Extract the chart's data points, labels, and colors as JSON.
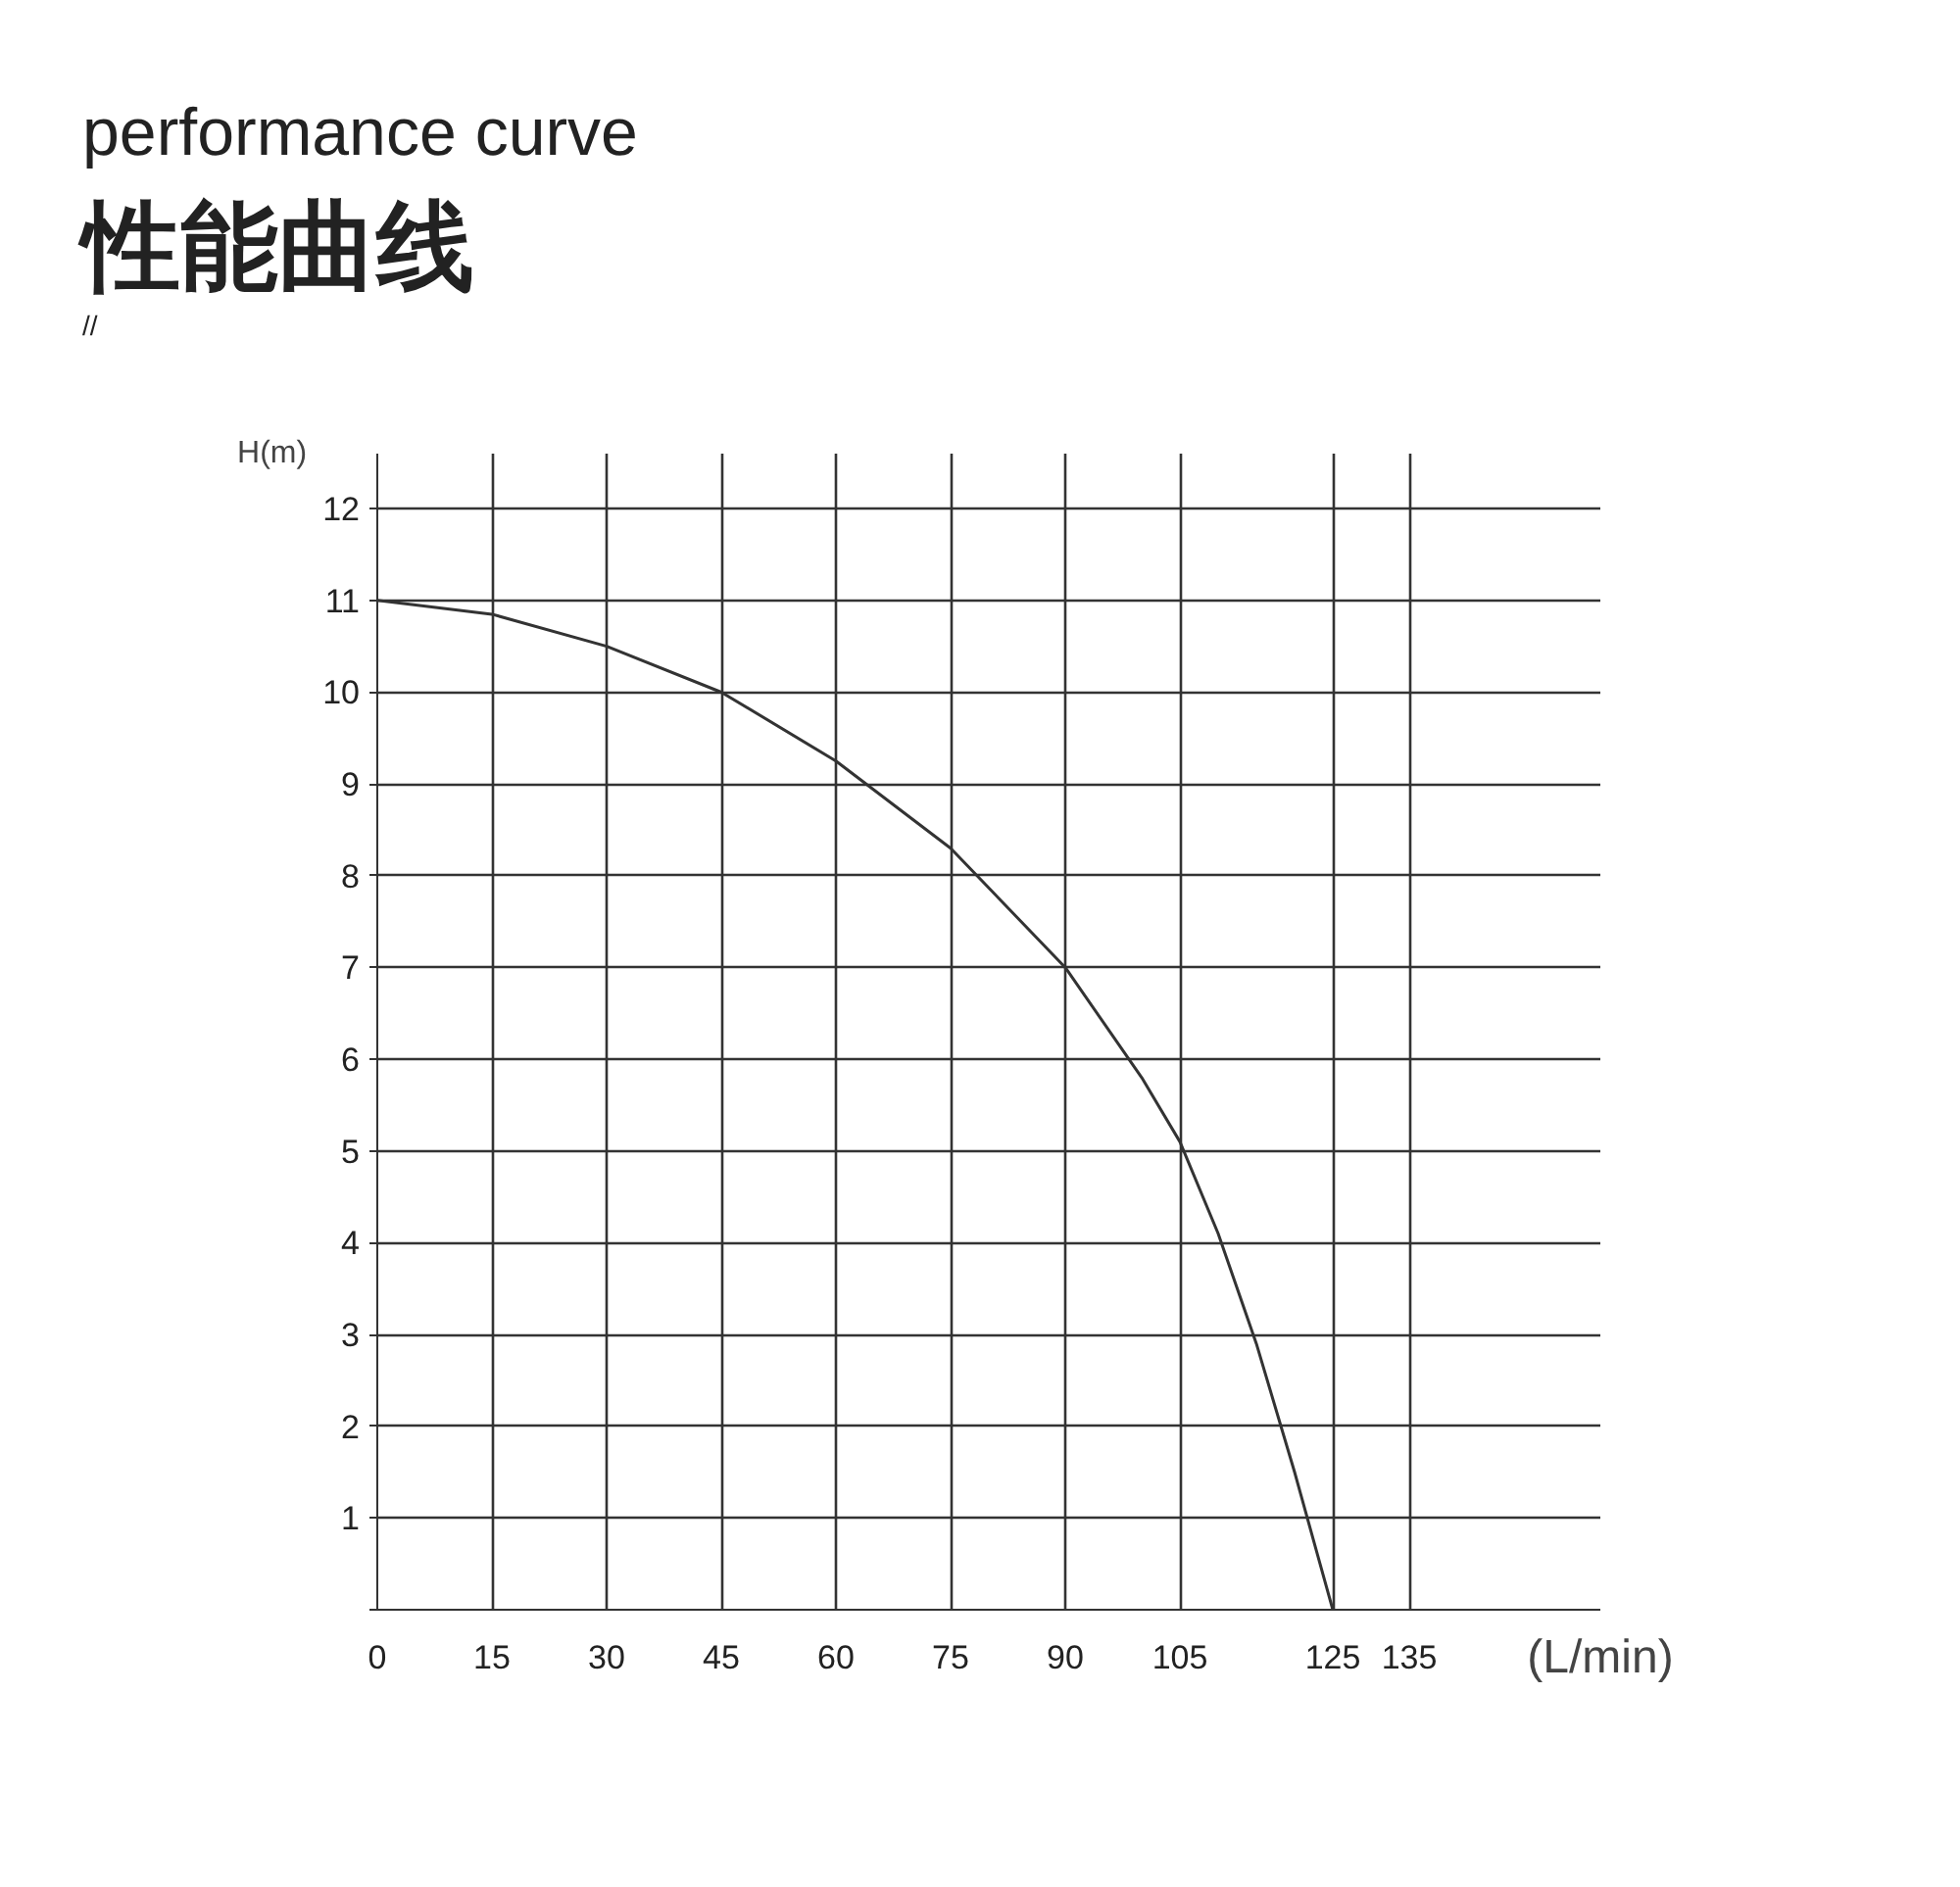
{
  "chart_data": {
    "type": "line",
    "title": "性能曲线",
    "subtitle": "performance curve",
    "annotations": [
      "//"
    ],
    "xlabel": "(L/min)",
    "ylabel": "H(m)",
    "series": [
      {
        "color": "#333333",
        "x": [
          0,
          15,
          30,
          45,
          60,
          75,
          90,
          100,
          105,
          110,
          115,
          120,
          123,
          125
        ],
        "values": [
          11,
          10.85,
          10.5,
          10,
          9.25,
          8.3,
          7,
          5.8,
          5.1,
          4.1,
          2.9,
          1.5,
          0.6,
          0
        ]
      }
    ],
    "xlim": [
      0,
      160
    ],
    "ylim": [
      0,
      12.6
    ],
    "xticks": [
      0,
      15,
      30,
      45,
      60,
      75,
      90,
      105,
      125,
      135
    ],
    "yticks": [
      {
        "value": 0,
        "label": null
      },
      1,
      2,
      3,
      4,
      5,
      6,
      7,
      8,
      9,
      10,
      11,
      12
    ],
    "grid": true,
    "marker": "none",
    "line_style": "solid"
  }
}
